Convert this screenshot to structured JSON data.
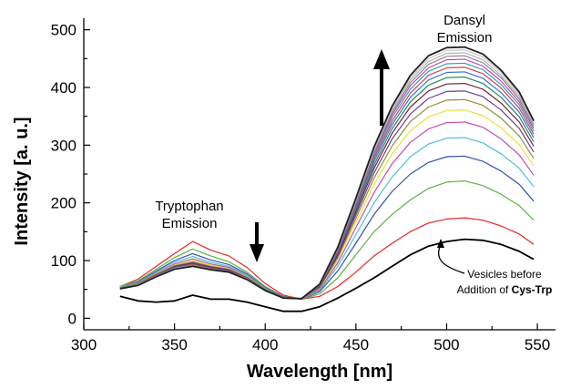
{
  "chart_data": {
    "type": "line",
    "xlabel": "Wavelength [nm]",
    "ylabel": "Intensity [a. u.]",
    "xlim": [
      300,
      560
    ],
    "ylim": [
      -20,
      520
    ],
    "x_ticks": [
      300,
      350,
      400,
      450,
      500,
      550
    ],
    "y_ticks": [
      0,
      100,
      200,
      300,
      400,
      500
    ],
    "grid": false,
    "legend": "none",
    "annotations": {
      "tryptophan_line1": "Tryptophan",
      "tryptophan_line2": "Emission",
      "dansyl_line1": "Dansyl",
      "dansyl_line2": "Emission",
      "vesicles_line1": "Vesicles before",
      "vesicles_line2_prefix": "Addition of ",
      "vesicles_line2_bold": "Cys-Trp"
    },
    "x": [
      320,
      330,
      340,
      350,
      360,
      370,
      380,
      390,
      400,
      410,
      420,
      430,
      440,
      450,
      460,
      470,
      480,
      490,
      500,
      510,
      520,
      530,
      540,
      548
    ],
    "series": [
      {
        "color": "#000000",
        "values": [
          38,
          30,
          28,
          30,
          40,
          33,
          33,
          28,
          20,
          12,
          12,
          20,
          35,
          52,
          70,
          90,
          110,
          125,
          133,
          137,
          135,
          128,
          116,
          102
        ]
      },
      {
        "color": "#e8262b",
        "values": [
          55,
          68,
          90,
          112,
          133,
          118,
          108,
          88,
          60,
          40,
          33,
          38,
          55,
          80,
          108,
          130,
          150,
          165,
          172,
          174,
          170,
          160,
          146,
          128
        ]
      },
      {
        "color": "#5db33f",
        "values": [
          55,
          65,
          85,
          105,
          120,
          108,
          98,
          80,
          55,
          38,
          33,
          42,
          70,
          110,
          150,
          180,
          205,
          225,
          236,
          238,
          230,
          215,
          195,
          170
        ]
      },
      {
        "color": "#2f4fb0",
        "values": [
          54,
          63,
          82,
          100,
          112,
          101,
          93,
          77,
          53,
          37,
          33,
          46,
          82,
          130,
          180,
          220,
          250,
          270,
          280,
          281,
          272,
          255,
          232,
          203
        ]
      },
      {
        "color": "#4dc1d6",
        "values": [
          54,
          62,
          80,
          97,
          107,
          97,
          90,
          75,
          52,
          36,
          33,
          48,
          90,
          145,
          200,
          245,
          280,
          302,
          312,
          313,
          304,
          285,
          260,
          228
        ]
      },
      {
        "color": "#c24fb2",
        "values": [
          53,
          61,
          78,
          94,
          103,
          94,
          88,
          73,
          51,
          36,
          33,
          50,
          96,
          157,
          218,
          268,
          305,
          328,
          339,
          340,
          331,
          311,
          283,
          248
        ]
      },
      {
        "color": "#ede03a",
        "values": [
          53,
          60,
          77,
          92,
          100,
          92,
          86,
          72,
          50,
          35,
          34,
          52,
          101,
          166,
          232,
          285,
          325,
          349,
          360,
          361,
          351,
          330,
          301,
          264
        ]
      },
      {
        "color": "#8f8f3a",
        "values": [
          53,
          60,
          76,
          91,
          98,
          90,
          85,
          71,
          50,
          35,
          34,
          53,
          105,
          173,
          243,
          299,
          341,
          366,
          378,
          379,
          369,
          347,
          316,
          277
        ]
      },
      {
        "color": "#6a3fa0",
        "values": [
          52,
          59,
          75,
          90,
          96,
          89,
          84,
          70,
          49,
          35,
          34,
          54,
          108,
          179,
          252,
          311,
          354,
          381,
          393,
          394,
          384,
          361,
          329,
          288
        ]
      },
      {
        "color": "#7a1f3a",
        "values": [
          52,
          59,
          75,
          89,
          95,
          88,
          83,
          70,
          49,
          35,
          34,
          55,
          111,
          184,
          260,
          321,
          366,
          394,
          406,
          407,
          397,
          373,
          340,
          298
        ]
      },
      {
        "color": "#1f8a5a",
        "values": [
          52,
          59,
          74,
          88,
          94,
          87,
          82,
          69,
          49,
          35,
          34,
          56,
          113,
          188,
          266,
          329,
          375,
          404,
          417,
          418,
          407,
          383,
          349,
          306
        ]
      },
      {
        "color": "#3c6fd8",
        "values": [
          52,
          58,
          74,
          88,
          93,
          86,
          82,
          69,
          48,
          35,
          34,
          56,
          115,
          192,
          272,
          336,
          383,
          413,
          426,
          427,
          416,
          391,
          357,
          313
        ]
      },
      {
        "color": "#d0404a",
        "values": [
          52,
          58,
          74,
          87,
          93,
          86,
          81,
          69,
          48,
          35,
          34,
          57,
          116,
          195,
          277,
          342,
          390,
          421,
          434,
          435,
          424,
          399,
          364,
          319
        ]
      },
      {
        "color": "#2ba6a8",
        "values": [
          52,
          58,
          73,
          87,
          92,
          85,
          81,
          68,
          48,
          35,
          34,
          57,
          118,
          198,
          281,
          348,
          397,
          428,
          441,
          442,
          431,
          405,
          370,
          324
        ]
      },
      {
        "color": "#d040c0",
        "values": [
          51,
          58,
          73,
          86,
          92,
          85,
          81,
          68,
          48,
          35,
          34,
          58,
          119,
          200,
          285,
          353,
          403,
          434,
          448,
          449,
          437,
          411,
          375,
          329
        ]
      },
      {
        "color": "#8a8a8a",
        "values": [
          51,
          58,
          73,
          86,
          91,
          85,
          80,
          68,
          48,
          35,
          34,
          58,
          120,
          202,
          288,
          357,
          408,
          440,
          454,
          455,
          443,
          417,
          380,
          333
        ]
      },
      {
        "color": "#b0b0b0",
        "values": [
          51,
          58,
          73,
          86,
          91,
          84,
          80,
          68,
          48,
          35,
          34,
          58,
          121,
          204,
          291,
          361,
          413,
          445,
          459,
          460,
          448,
          421,
          384,
          336
        ]
      },
      {
        "color": "#c8c8c8",
        "values": [
          51,
          58,
          73,
          86,
          91,
          84,
          80,
          68,
          48,
          35,
          34,
          59,
          122,
          206,
          294,
          364,
          417,
          450,
          464,
          465,
          453,
          426,
          388,
          339
        ]
      },
      {
        "color": "#202020",
        "values": [
          51,
          57,
          72,
          85,
          90,
          84,
          80,
          67,
          48,
          35,
          34,
          59,
          123,
          208,
          297,
          368,
          421,
          455,
          469,
          470,
          458,
          430,
          392,
          342
        ]
      }
    ]
  }
}
